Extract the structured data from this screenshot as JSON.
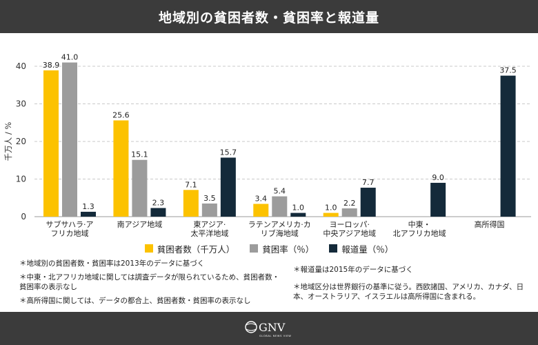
{
  "header": {
    "title": "地域別の貧困者数・貧困率と報道量"
  },
  "legend": [
    {
      "label": "貧困者数（千万人）",
      "color": "#FCC200"
    },
    {
      "label": "貧困率（％）",
      "color": "#9C9C9C"
    },
    {
      "label": "報道量（％）",
      "color": "#142A3A"
    }
  ],
  "notes": {
    "n1": "＊地域別の貧困者数・貧困率は2013年のデータに基づく",
    "n2": "＊中東・北アフリカ地域に関しては調査データが限られているため、貧困者数・貧困率の表示なし",
    "n3": "＊高所得国に関しては、データの都合上、貧困者数・貧困率の表示なし",
    "n4": "＊報道量は2015年のデータに基づく",
    "n5": "＊地域区分は世界銀行の基準に従う。西欧諸国、アメリカ、カナダ、日本、オーストラリア、イスラエルは高所得国に含まれる。"
  },
  "logo": {
    "text": "GNV",
    "subtext": "GLOBAL NEWS VIEW"
  },
  "chart_data": {
    "type": "bar",
    "title": "地域別の貧困者数・貧困率と報道量",
    "ylabel": "千万人 / %",
    "xlabel": "",
    "ylim": [
      0,
      40
    ],
    "yticks": [
      0,
      10,
      20,
      30,
      40
    ],
    "grid": true,
    "categories": [
      "サブサハラ・アフリカ地域",
      "南アジア地域",
      "東アジア・太平洋地域",
      "ラテンアメリカ・カリブ海地域",
      "ヨーロッパ・中央アジア地域",
      "中東・北アフリカ地域",
      "高所得国"
    ],
    "category_labels": [
      [
        "サブサハラ·ア",
        "フリカ地域"
      ],
      [
        "南アジア地域"
      ],
      [
        "東アジア·",
        "太平洋地域"
      ],
      [
        "ラテンアメリカ·カ",
        "リブ海地域"
      ],
      [
        "ヨーロッパ·",
        "中央アジア地域"
      ],
      [
        "中東・",
        "北アフリカ地域"
      ],
      [
        "高所得国"
      ]
    ],
    "series": [
      {
        "name": "貧困者数（千万人）",
        "color": "#FCC200",
        "values": [
          38.9,
          25.6,
          7.1,
          3.4,
          1.0,
          null,
          null
        ]
      },
      {
        "name": "貧困率（％）",
        "color": "#9C9C9C",
        "values": [
          41.0,
          15.1,
          3.5,
          5.4,
          2.2,
          null,
          null
        ]
      },
      {
        "name": "報道量（％）",
        "color": "#142A3A",
        "values": [
          1.3,
          2.3,
          15.7,
          1.0,
          7.7,
          9.0,
          37.5
        ]
      }
    ]
  }
}
